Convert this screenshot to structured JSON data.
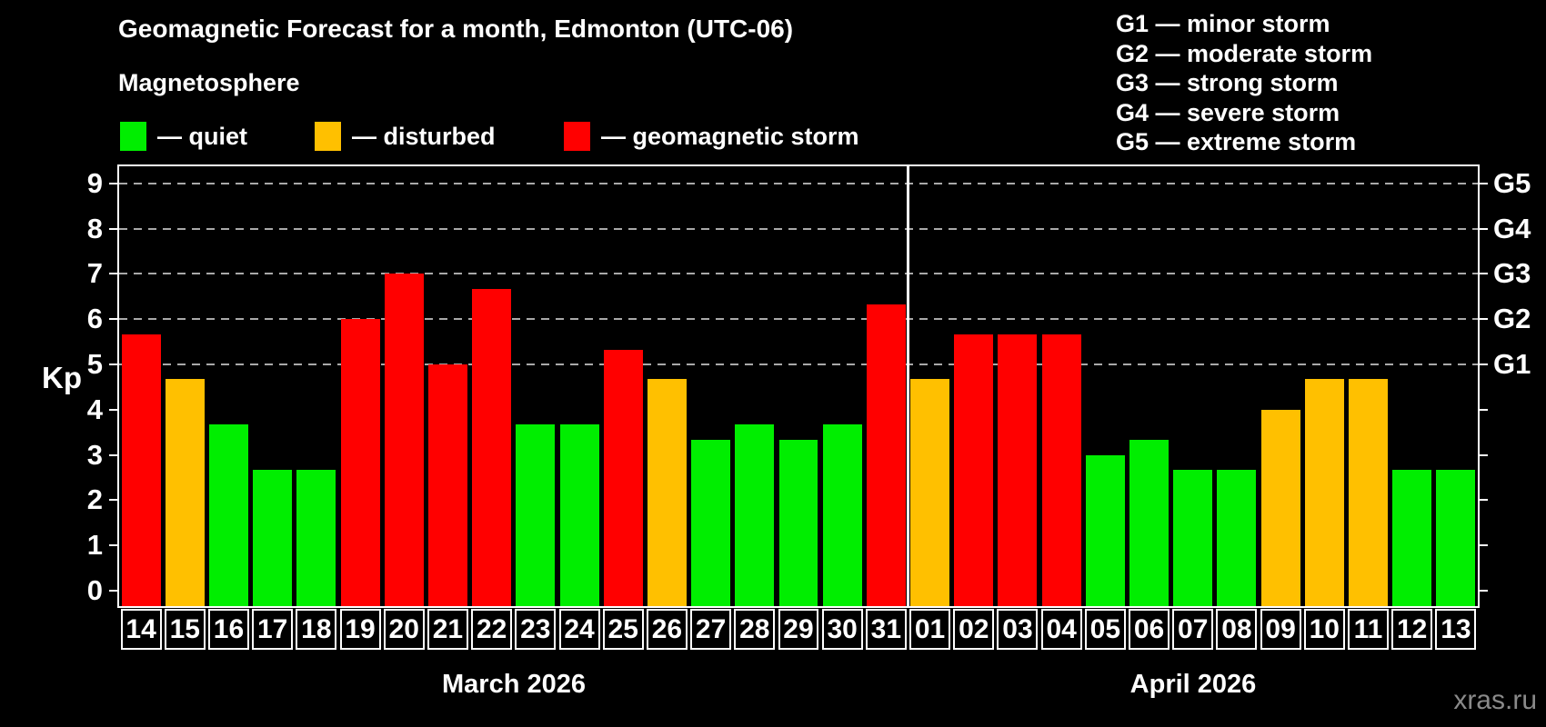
{
  "title": "Geomagnetic Forecast for a month, Edmonton (UTC-06)",
  "subtitle": "Magnetosphere",
  "legend": {
    "quiet_label": "— quiet",
    "disturbed_label": "— disturbed",
    "storm_label": "— geomagnetic storm"
  },
  "g_scale_legend": [
    "G1 — minor storm",
    "G2 — moderate storm",
    "G3 — strong storm",
    "G4 — severe storm",
    "G5 — extreme storm"
  ],
  "colors": {
    "quiet": "#00ee00",
    "disturbed": "#ffc000",
    "storm": "#ff0000",
    "background": "#000000",
    "frame": "#ffffff",
    "grid": "#a9a9a9",
    "watermark": "#8a8a8a"
  },
  "watermark": "xras.ru",
  "chart_data": {
    "type": "bar",
    "title": "Geomagnetic Forecast for a month, Edmonton (UTC-06)",
    "xlabel": "",
    "ylabel": "Kp",
    "ylim": [
      0,
      9
    ],
    "grid": "dashed horizontal at Kp 5-9",
    "y_ticks": [
      0,
      1,
      2,
      3,
      4,
      5,
      6,
      7,
      8,
      9
    ],
    "right_axis_labels": [
      {
        "kp": 5,
        "label": "G1"
      },
      {
        "kp": 6,
        "label": "G2"
      },
      {
        "kp": 7,
        "label": "G3"
      },
      {
        "kp": 8,
        "label": "G4"
      },
      {
        "kp": 9,
        "label": "G5"
      }
    ],
    "groups": [
      {
        "month_label": "March 2026",
        "days": [
          {
            "date": "14",
            "kp": 5.67,
            "level": "storm"
          },
          {
            "date": "15",
            "kp": 4.67,
            "level": "disturbed"
          },
          {
            "date": "16",
            "kp": 3.67,
            "level": "quiet"
          },
          {
            "date": "17",
            "kp": 2.67,
            "level": "quiet"
          },
          {
            "date": "18",
            "kp": 2.67,
            "level": "quiet"
          },
          {
            "date": "19",
            "kp": 6.0,
            "level": "storm"
          },
          {
            "date": "20",
            "kp": 7.0,
            "level": "storm"
          },
          {
            "date": "21",
            "kp": 5.0,
            "level": "storm"
          },
          {
            "date": "22",
            "kp": 6.67,
            "level": "storm"
          },
          {
            "date": "23",
            "kp": 3.67,
            "level": "quiet"
          },
          {
            "date": "24",
            "kp": 3.67,
            "level": "quiet"
          },
          {
            "date": "25",
            "kp": 5.33,
            "level": "storm"
          },
          {
            "date": "26",
            "kp": 4.67,
            "level": "disturbed"
          },
          {
            "date": "27",
            "kp": 3.33,
            "level": "quiet"
          },
          {
            "date": "28",
            "kp": 3.67,
            "level": "quiet"
          },
          {
            "date": "29",
            "kp": 3.33,
            "level": "quiet"
          },
          {
            "date": "30",
            "kp": 3.67,
            "level": "quiet"
          },
          {
            "date": "31",
            "kp": 6.33,
            "level": "storm"
          }
        ]
      },
      {
        "month_label": "April 2026",
        "days": [
          {
            "date": "01",
            "kp": 4.67,
            "level": "disturbed"
          },
          {
            "date": "02",
            "kp": 5.67,
            "level": "storm"
          },
          {
            "date": "03",
            "kp": 5.67,
            "level": "storm"
          },
          {
            "date": "04",
            "kp": 5.67,
            "level": "storm"
          },
          {
            "date": "05",
            "kp": 3.0,
            "level": "quiet"
          },
          {
            "date": "06",
            "kp": 3.33,
            "level": "quiet"
          },
          {
            "date": "07",
            "kp": 2.67,
            "level": "quiet"
          },
          {
            "date": "08",
            "kp": 2.67,
            "level": "quiet"
          },
          {
            "date": "09",
            "kp": 4.0,
            "level": "disturbed"
          },
          {
            "date": "10",
            "kp": 4.67,
            "level": "disturbed"
          },
          {
            "date": "11",
            "kp": 4.67,
            "level": "disturbed"
          },
          {
            "date": "12",
            "kp": 2.67,
            "level": "quiet"
          },
          {
            "date": "13",
            "kp": 2.67,
            "level": "quiet"
          }
        ]
      }
    ]
  }
}
